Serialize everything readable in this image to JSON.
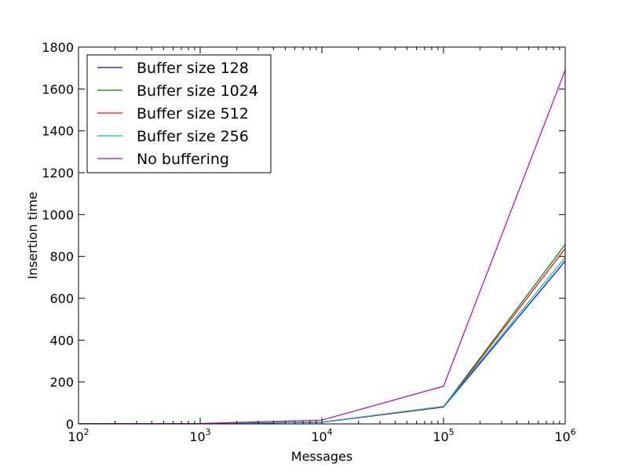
{
  "chart_data": {
    "type": "line",
    "title": "",
    "xlabel": "Messages",
    "ylabel": "Insertion time",
    "xscale": "log",
    "x": [
      100,
      1000,
      10000,
      100000,
      1000000
    ],
    "xlim": [
      100,
      1000000
    ],
    "ylim": [
      0,
      1800
    ],
    "x_ticks": [
      {
        "base": "10",
        "exp": "2"
      },
      {
        "base": "10",
        "exp": "3"
      },
      {
        "base": "10",
        "exp": "4"
      },
      {
        "base": "10",
        "exp": "5"
      },
      {
        "base": "10",
        "exp": "6"
      }
    ],
    "y_ticks": [
      0,
      200,
      400,
      600,
      800,
      1000,
      1200,
      1400,
      1600,
      1800
    ],
    "grid": false,
    "legend_position": "top-left",
    "series": [
      {
        "name": "Buffer size 128",
        "color": "#0000ff",
        "values": [
          0.5,
          1,
          8,
          80,
          778
        ]
      },
      {
        "name": "Buffer size 1024",
        "color": "#008000",
        "values": [
          0.5,
          1,
          8,
          82,
          857
        ]
      },
      {
        "name": "Buffer size 512",
        "color": "#ff0000",
        "values": [
          0.5,
          1,
          8,
          81,
          838
        ]
      },
      {
        "name": "Buffer size 256",
        "color": "#00bfbf",
        "values": [
          0.5,
          1,
          9,
          84,
          795
        ]
      },
      {
        "name": "No buffering",
        "color": "#bf00bf",
        "values": [
          1,
          2,
          18,
          180,
          1690
        ]
      }
    ]
  }
}
